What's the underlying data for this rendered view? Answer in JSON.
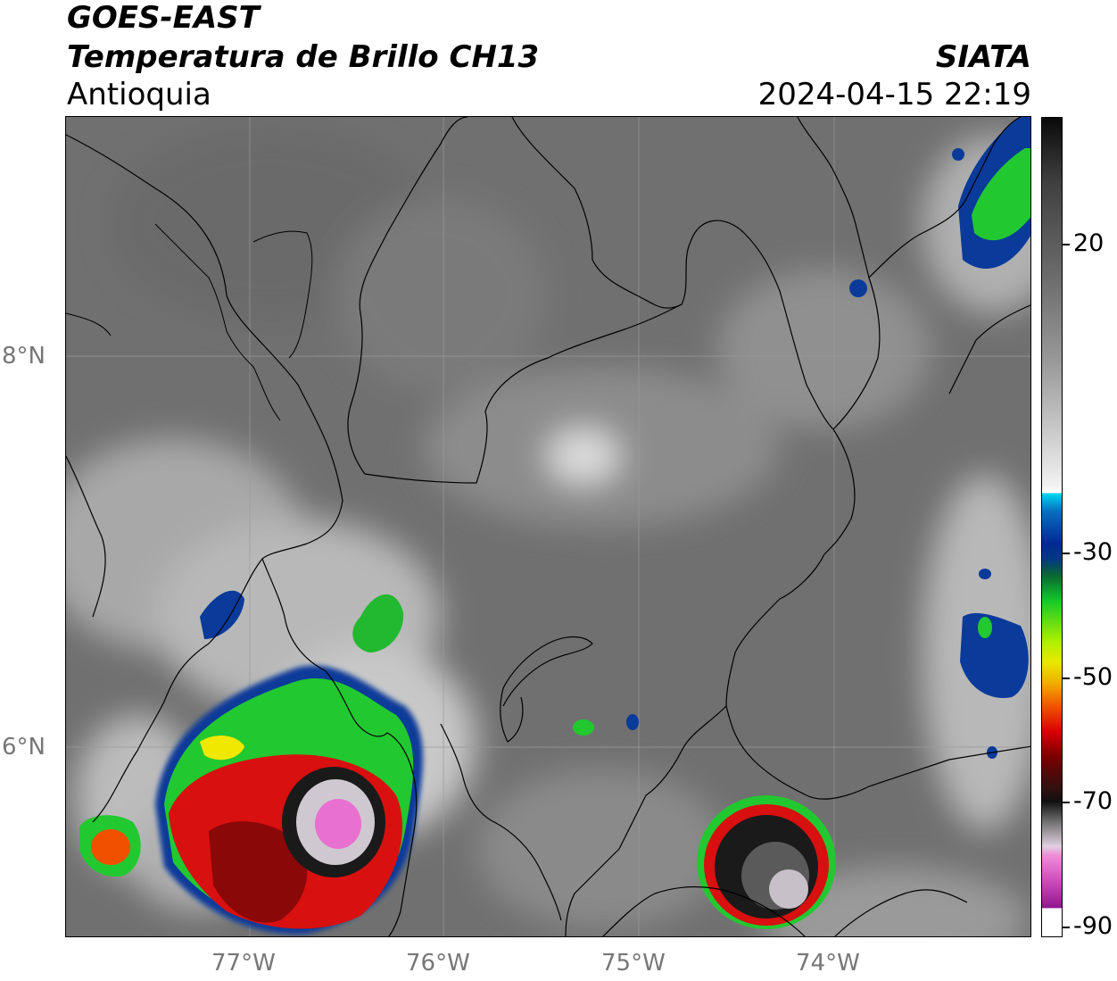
{
  "header": {
    "satellite": "GOES-EAST",
    "product": "Temperatura de Brillo CH13",
    "region": "Antioquia",
    "organization": "SIATA",
    "datetime": "2024-04-15 22:19"
  },
  "map": {
    "latitude_labels": [
      "8°N",
      "6°N"
    ],
    "longitude_labels": [
      "77°W",
      "76°W",
      "75°W",
      "74°W"
    ]
  },
  "colorbar": {
    "labels": [
      "20",
      "-30",
      "-50",
      "-70",
      "-90"
    ],
    "colors": {
      "warm_gray": "#6e6e6e",
      "light_gray": "#d8d8d8",
      "cyan": "#00d8f0",
      "dark_blue": "#002a90",
      "green": "#16c82a",
      "yellow": "#e8e800",
      "orange": "#f08000",
      "red": "#d80000",
      "dark_red": "#500000",
      "black": "#101010",
      "pink": "#e060c8",
      "purple": "#901890"
    }
  }
}
